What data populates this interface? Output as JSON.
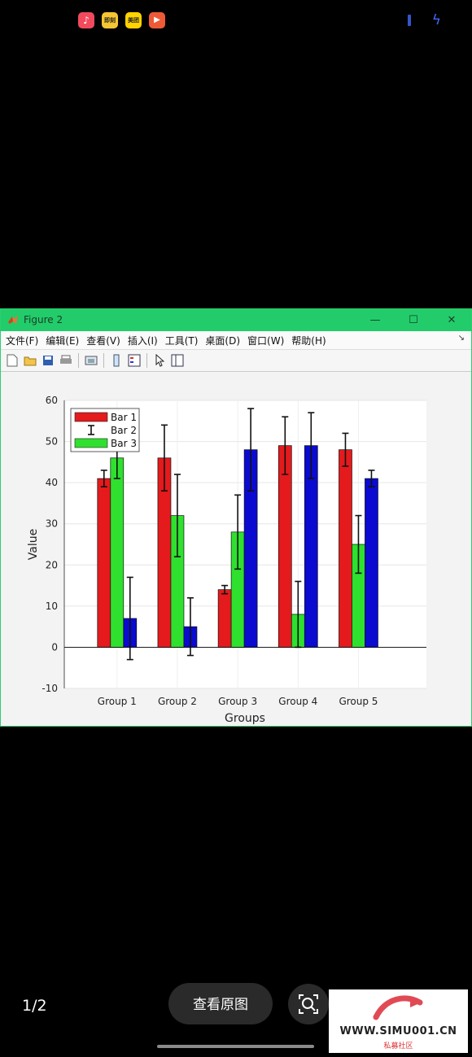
{
  "status_bar": {
    "apps": [
      "music-app",
      "jipin-app",
      "meituan-app",
      "video-app"
    ],
    "app_labels": [
      "",
      "即刻",
      "美团",
      ""
    ]
  },
  "window": {
    "title": "Figure 2",
    "controls": {
      "minimize": "—",
      "maximize": "☐",
      "close": "✕"
    },
    "menu": [
      "文件(F)",
      "编辑(E)",
      "查看(V)",
      "插入(I)",
      "工具(T)",
      "桌面(D)",
      "窗口(W)",
      "帮助(H)"
    ],
    "toolbar_icons": [
      "new-figure-icon",
      "open-icon",
      "save-icon",
      "print-icon",
      "export-icon",
      "colorbar-icon",
      "legend-icon",
      "pointer-icon",
      "property-editor-icon"
    ]
  },
  "chart_data": {
    "type": "bar",
    "categories": [
      "Group 1",
      "Group 2",
      "Group 3",
      "Group 4",
      "Group 5"
    ],
    "series": [
      {
        "name": "Bar 1",
        "color": "#e41a1c",
        "values": [
          41,
          46,
          14,
          49,
          48
        ],
        "errors": [
          2,
          8,
          1,
          7,
          4
        ]
      },
      {
        "color": "#2fe02f",
        "values": [
          46,
          32,
          28,
          8,
          25
        ],
        "errors": [
          5,
          10,
          9,
          8,
          7
        ]
      },
      {
        "name": "Bar 3",
        "color": "#0a0ad0",
        "values": [
          7,
          5,
          48,
          49,
          41
        ],
        "errors": [
          10,
          7,
          10,
          8,
          2
        ]
      }
    ],
    "legend": [
      "Bar 1",
      "Bar 2",
      "Bar 3"
    ],
    "legend_position": "top-left",
    "xlabel": "Groups",
    "ylabel": "Value",
    "ylim": [
      -10,
      60
    ],
    "yticks": [
      "-10",
      "0",
      "10",
      "20",
      "30",
      "40",
      "50",
      "60"
    ],
    "grid": true
  },
  "bottom": {
    "page_indicator": "1/2",
    "view_original": "查看原图"
  },
  "watermark": {
    "text": "WWW.SIMU001.CN",
    "sub": "私募社区"
  }
}
